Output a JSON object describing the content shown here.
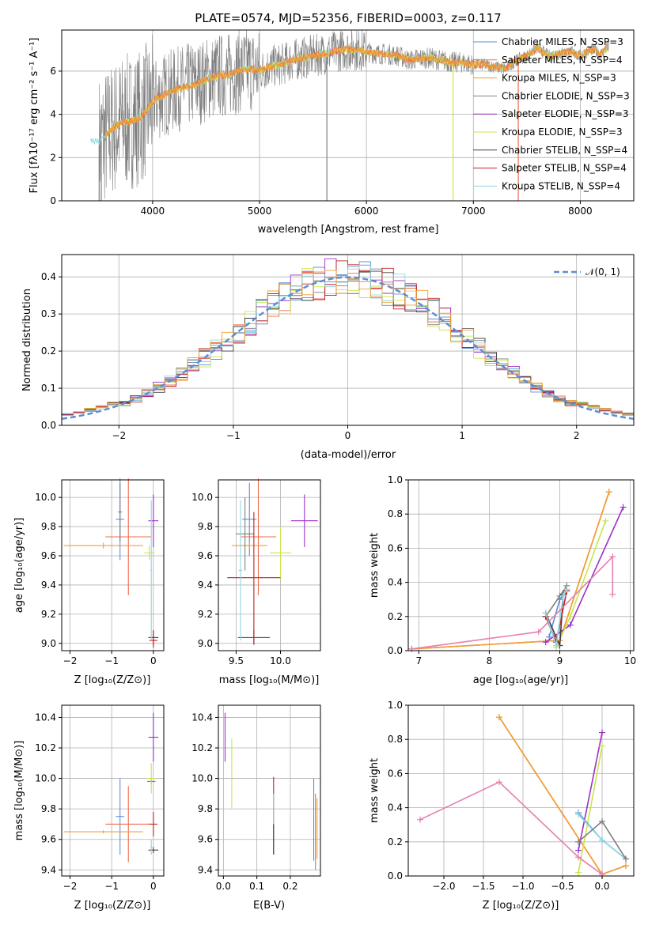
{
  "title": "PLATE=0574, MJD=52356, FIBERID=0003, z=0.117",
  "colors": {
    "grid": "#b0b0b0",
    "spectrum_grey": "#808080",
    "normal_curve": "#5b8fd4",
    "series": [
      "#5b8fd4",
      "#ef6b4e",
      "#f0a030",
      "#7f7f7f",
      "#9b30c8",
      "#c8e64b",
      "#404040",
      "#c42020",
      "#8fd6e0"
    ]
  },
  "chart_data": [
    {
      "id": "spectrum",
      "type": "line",
      "xlabel": "wavelength [Angstrom, rest frame]",
      "ylabel": "Flux [fλ10⁻¹⁷ erg cm⁻² s⁻¹ A⁻¹]",
      "xlim": [
        3150,
        8500
      ],
      "ylim": [
        0,
        7.9
      ],
      "xticks": [
        4000,
        5000,
        6000,
        7000,
        8000
      ],
      "yticks": [
        0,
        2,
        4,
        6
      ],
      "legend_position": "top-right",
      "series": [
        {
          "name": "Chabrier MILES, N_SSP=3"
        },
        {
          "name": "Salpeter MILES, N_SSP=4"
        },
        {
          "name": "Kroupa MILES, N_SSP=3"
        },
        {
          "name": "Chabrier ELODIE, N_SSP=3"
        },
        {
          "name": "Salpeter ELODIE, N_SSP=3"
        },
        {
          "name": "Kroupa ELODIE, N_SSP=3"
        },
        {
          "name": "Chabrier STELIB, N_SSP=4"
        },
        {
          "name": "Salpeter STELIB, N_SSP=4"
        },
        {
          "name": "Kroupa STELIB, N_SSP=4"
        }
      ],
      "model_continuum": {
        "x": [
          3400,
          3500,
          3600,
          3700,
          3800,
          3900,
          4000,
          4100,
          4200,
          4300,
          4400,
          4500,
          4600,
          4700,
          4800,
          4900,
          5000,
          5100,
          5200,
          5300,
          5400,
          5500,
          5600,
          5700,
          5800,
          5900,
          6000,
          6100,
          6200,
          6300,
          6400,
          6500,
          6600,
          6700,
          6800,
          6900,
          7000,
          7100,
          7200,
          7300,
          7400,
          7500,
          7600,
          7700,
          7800,
          7900,
          8000,
          8100,
          8200,
          8250
        ],
        "y": [
          2.8,
          2.7,
          3.2,
          3.6,
          3.7,
          3.9,
          4.6,
          4.9,
          5.1,
          5.3,
          5.4,
          5.6,
          5.8,
          5.8,
          6.0,
          6.1,
          6.0,
          6.2,
          6.3,
          6.5,
          6.6,
          6.7,
          6.8,
          6.9,
          7.0,
          7.0,
          6.9,
          6.8,
          6.8,
          6.7,
          6.5,
          6.6,
          6.6,
          6.5,
          6.4,
          6.4,
          6.3,
          6.3,
          6.2,
          6.1,
          6.5,
          6.7,
          7.1,
          6.7,
          6.8,
          6.9,
          6.7,
          7.0,
          6.8,
          7.1
        ]
      }
    },
    {
      "id": "residual-hist",
      "type": "line",
      "xlabel": "(data-model)/error",
      "ylabel": "Normed distribution",
      "xlim": [
        -2.5,
        2.5
      ],
      "ylim": [
        0,
        0.46
      ],
      "xticks": [
        -2,
        -1,
        0,
        1,
        2
      ],
      "yticks": [
        0.0,
        0.1,
        0.2,
        0.3,
        0.4
      ],
      "legend_position": "top-right",
      "series": [
        {
          "name": "𝒩(0, 1)"
        }
      ]
    },
    {
      "id": "age-vs-Z",
      "type": "scatter",
      "xlabel": "Z [log₁₀(Z/Z⊙)]",
      "ylabel": "age  [log₁₀(age/yr)]",
      "xlim": [
        -2.2,
        0.25
      ],
      "ylim": [
        8.95,
        10.12
      ],
      "xticks": [
        -2,
        -1,
        0
      ],
      "yticks": [
        9.0,
        9.2,
        9.4,
        9.6,
        9.8,
        10.0
      ],
      "points": [
        {
          "x": -0.8,
          "y": 9.85,
          "xerr": 0.1,
          "yerr": 0.28,
          "c": 0
        },
        {
          "x": -0.6,
          "y": 9.73,
          "xerr": 0.55,
          "yerr": 0.4,
          "c": 1
        },
        {
          "x": -1.2,
          "y": 9.67,
          "xerr": 0.95,
          "yerr": 0.02,
          "c": 2
        },
        {
          "x": -0.8,
          "y": 9.9,
          "xerr": 0.05,
          "yerr": 0.2,
          "c": 3
        },
        {
          "x": 0.0,
          "y": 9.84,
          "xerr": 0.12,
          "yerr": 0.18,
          "c": 4
        },
        {
          "x": -0.1,
          "y": 9.62,
          "xerr": 0.12,
          "yerr": 0.05,
          "c": 5
        },
        {
          "x": 0.0,
          "y": 9.04,
          "xerr": 0.12,
          "yerr": 0.05,
          "c": 6
        },
        {
          "x": 0.0,
          "y": 9.02,
          "xerr": 0.1,
          "yerr": 0.05,
          "c": 7
        },
        {
          "x": -0.05,
          "y": 9.5,
          "xerr": 0.02,
          "yerr": 0.48,
          "c": 8
        }
      ]
    },
    {
      "id": "age-vs-mass",
      "type": "scatter",
      "xlabel": "mass [log₁₀(M/M⊙)]",
      "ylabel": "",
      "xlim": [
        9.3,
        10.45
      ],
      "ylim": [
        8.95,
        10.12
      ],
      "xticks": [
        9.5,
        10.0
      ],
      "yticks": [
        9.0,
        9.2,
        9.4,
        9.6,
        9.8,
        10.0
      ],
      "points": [
        {
          "x": 9.65,
          "y": 9.85,
          "xerr": 0.08,
          "yerr": 0.25,
          "c": 0
        },
        {
          "x": 9.75,
          "y": 9.73,
          "xerr": 0.2,
          "yerr": 0.4,
          "c": 1
        },
        {
          "x": 9.65,
          "y": 9.67,
          "xerr": 0.2,
          "yerr": 0.02,
          "c": 2
        },
        {
          "x": 9.6,
          "y": 9.75,
          "xerr": 0.1,
          "yerr": 0.25,
          "c": 3
        },
        {
          "x": 10.27,
          "y": 9.84,
          "xerr": 0.15,
          "yerr": 0.18,
          "c": 4
        },
        {
          "x": 10.0,
          "y": 9.62,
          "xerr": 0.12,
          "yerr": 0.18,
          "c": 5
        },
        {
          "x": 9.7,
          "y": 9.04,
          "xerr": 0.18,
          "yerr": 0.05,
          "c": 6
        },
        {
          "x": 9.7,
          "y": 9.45,
          "xerr": 0.3,
          "yerr": 0.45,
          "c": 7
        },
        {
          "x": 9.55,
          "y": 9.5,
          "xerr": 0.02,
          "yerr": 0.48,
          "c": 8
        }
      ]
    },
    {
      "id": "mass-weight-vs-age",
      "type": "line",
      "xlabel": "age  [log₁₀(age/yr)]",
      "ylabel": "mass weight",
      "xlim": [
        6.85,
        10.05
      ],
      "ylim": [
        0,
        1.0
      ],
      "xticks": [
        7,
        8,
        9,
        10
      ],
      "yticks": [
        0.0,
        0.2,
        0.4,
        0.6,
        0.8,
        1.0
      ],
      "series": [
        {
          "c": 0,
          "x": [
            8.85,
            9.0,
            9.1
          ],
          "y": [
            0.08,
            0.3,
            0.35
          ]
        },
        {
          "c": 1,
          "x": [
            6.9,
            9.0,
            9.7
          ],
          "y": [
            0.01,
            0.06,
            0.93
          ]
        },
        {
          "c": 2,
          "x": [
            6.9,
            9.0,
            9.7
          ],
          "y": [
            0.01,
            0.06,
            0.93
          ]
        },
        {
          "c": 3,
          "x": [
            8.8,
            9.0,
            9.1
          ],
          "y": [
            0.2,
            0.32,
            0.38
          ]
        },
        {
          "c": 4,
          "x": [
            8.8,
            9.15,
            9.9
          ],
          "y": [
            0.05,
            0.15,
            0.84
          ]
        },
        {
          "c": 5,
          "x": [
            8.95,
            9.15,
            9.65
          ],
          "y": [
            0.02,
            0.2,
            0.76
          ]
        },
        {
          "c": 6,
          "x": [
            8.8,
            9.0,
            9.05
          ],
          "y": [
            0.22,
            0.03,
            0.33
          ]
        },
        {
          "c": 7,
          "x": [
            8.8,
            8.95,
            9.1
          ],
          "y": [
            0.2,
            0.05,
            0.35
          ]
        },
        {
          "c": 8,
          "x": [
            8.8,
            8.95,
            9.05,
            9.1
          ],
          "y": [
            0.22,
            0.03,
            0.32,
            0.36
          ]
        },
        {
          "c": 9,
          "x": [
            6.9,
            8.7,
            9.75,
            9.75
          ],
          "y": [
            0.01,
            0.11,
            0.55,
            0.33
          ]
        }
      ]
    },
    {
      "id": "mass-vs-Z",
      "type": "scatter",
      "xlabel": "Z [log₁₀(Z/Z⊙)]",
      "ylabel": "mass [log₁₀(M/M⊙)]",
      "xlim": [
        -2.2,
        0.25
      ],
      "ylim": [
        9.36,
        10.48
      ],
      "xticks": [
        -2,
        -1,
        0
      ],
      "yticks": [
        9.4,
        9.6,
        9.8,
        10.0,
        10.2,
        10.4
      ],
      "points": [
        {
          "x": -0.8,
          "y": 9.75,
          "xerr": 0.1,
          "yerr": 0.25,
          "c": 0
        },
        {
          "x": -0.6,
          "y": 9.7,
          "xerr": 0.55,
          "yerr": 0.25,
          "c": 1
        },
        {
          "x": -1.2,
          "y": 9.65,
          "xerr": 0.95,
          "yerr": 0.01,
          "c": 2
        },
        {
          "x": -0.05,
          "y": 9.98,
          "xerr": 0.1,
          "yerr": 0.02,
          "c": 3
        },
        {
          "x": 0.0,
          "y": 10.27,
          "xerr": 0.12,
          "yerr": 0.16,
          "c": 4
        },
        {
          "x": -0.05,
          "y": 10.0,
          "xerr": 0.1,
          "yerr": 0.1,
          "c": 5
        },
        {
          "x": 0.0,
          "y": 9.53,
          "xerr": 0.12,
          "yerr": 0.02,
          "c": 6
        },
        {
          "x": 0.0,
          "y": 9.7,
          "xerr": 0.1,
          "yerr": 0.08,
          "c": 7
        },
        {
          "x": -0.05,
          "y": 9.55,
          "xerr": 0.02,
          "yerr": 0.05,
          "c": 8
        }
      ]
    },
    {
      "id": "mass-vs-ebv",
      "type": "scatter",
      "xlabel": "E(B-V)",
      "ylabel": "",
      "xlim": [
        -0.015,
        0.29
      ],
      "ylim": [
        9.36,
        10.48
      ],
      "xticks": [
        0.0,
        0.1,
        0.2
      ],
      "yticks": [
        9.4,
        9.6,
        9.8,
        10.0,
        10.2,
        10.4
      ],
      "points": [
        {
          "x": 0.005,
          "y": 10.27,
          "yerr": 0.16,
          "c": 4
        },
        {
          "x": 0.025,
          "y": 10.03,
          "yerr": 0.23,
          "c": 5
        },
        {
          "x": 0.15,
          "y": 9.76,
          "yerr": 0.25,
          "c": 7
        },
        {
          "x": 0.15,
          "y": 9.7,
          "yerr": 0.2,
          "c": 8
        },
        {
          "x": 0.15,
          "y": 9.6,
          "yerr": 0.1,
          "c": 6
        },
        {
          "x": 0.27,
          "y": 9.73,
          "yerr": 0.27,
          "c": 0
        },
        {
          "x": 0.275,
          "y": 9.65,
          "yerr": 0.25,
          "c": 1
        },
        {
          "x": 0.28,
          "y": 9.67,
          "yerr": 0.2,
          "c": 2
        }
      ]
    },
    {
      "id": "mass-weight-vs-Z",
      "type": "line",
      "xlabel": "Z [log₁₀(Z/Z⊙)]",
      "ylabel": "mass weight",
      "xlim": [
        -2.45,
        0.4
      ],
      "ylim": [
        0,
        1.0
      ],
      "xticks": [
        -2.0,
        -1.5,
        -1.0,
        -0.5,
        0.0
      ],
      "yticks": [
        0.0,
        0.2,
        0.4,
        0.6,
        0.8,
        1.0
      ],
      "series": [
        {
          "c": 1,
          "x": [
            -1.3,
            0.0,
            0.3
          ],
          "y": [
            0.93,
            0.01,
            0.06
          ]
        },
        {
          "c": 2,
          "x": [
            -1.3,
            0.0,
            0.3
          ],
          "y": [
            0.93,
            0.01,
            0.06
          ]
        },
        {
          "c": 4,
          "x": [
            -0.3,
            0.0
          ],
          "y": [
            0.15,
            0.84
          ]
        },
        {
          "c": 5,
          "x": [
            -0.3,
            0.0
          ],
          "y": [
            0.02,
            0.76
          ]
        },
        {
          "c": 0,
          "x": [
            -0.3,
            0.0,
            0.3
          ],
          "y": [
            0.37,
            0.21,
            0.1
          ]
        },
        {
          "c": 8,
          "x": [
            -0.3,
            0.0,
            0.3
          ],
          "y": [
            0.36,
            0.21,
            0.1
          ]
        },
        {
          "c": 3,
          "x": [
            -0.3,
            0.0,
            0.3
          ],
          "y": [
            0.2,
            0.32,
            0.1
          ]
        },
        {
          "c": 9,
          "x": [
            -2.3,
            -1.3,
            -0.3,
            0.0
          ],
          "y": [
            0.33,
            0.55,
            0.11,
            0.01
          ]
        }
      ]
    }
  ]
}
